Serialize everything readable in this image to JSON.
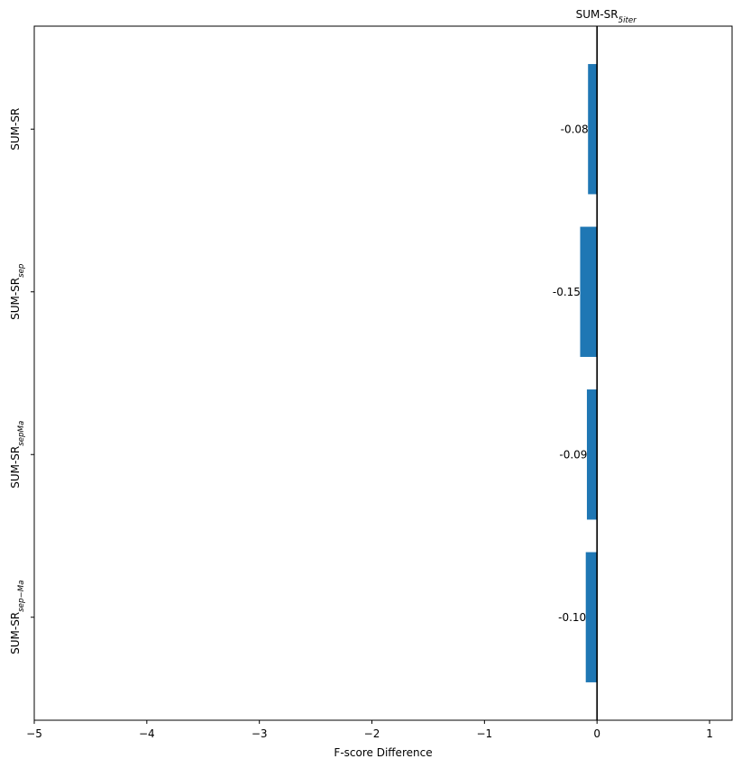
{
  "chart_data": {
    "type": "bar",
    "orientation": "horizontal",
    "title": {
      "base": "SUM-SR",
      "sub": "5iter"
    },
    "xlabel": "F-score Difference",
    "ylabel": "",
    "xlim": [
      -5,
      1.2
    ],
    "xticks": [
      -5,
      -4,
      -3,
      -2,
      -1,
      0,
      1
    ],
    "xtick_labels": [
      "−5",
      "−4",
      "−3",
      "−2",
      "−1",
      "0",
      "1"
    ],
    "categories": [
      {
        "base": "SUM-SR",
        "sub": ""
      },
      {
        "base": "SUM-SR",
        "sub": "sep"
      },
      {
        "base": "SUM-SR",
        "sub": "sepMa"
      },
      {
        "base": "SUM-SR",
        "sub": "sep−Ma"
      }
    ],
    "values": [
      -0.08,
      -0.15,
      -0.09,
      -0.1
    ],
    "value_labels": [
      "-0.08",
      "-0.15",
      "-0.09",
      "-0.10"
    ],
    "bar_color": "#1f77b4",
    "zero_line_color": "#000000",
    "grid": false,
    "legend": "none"
  }
}
